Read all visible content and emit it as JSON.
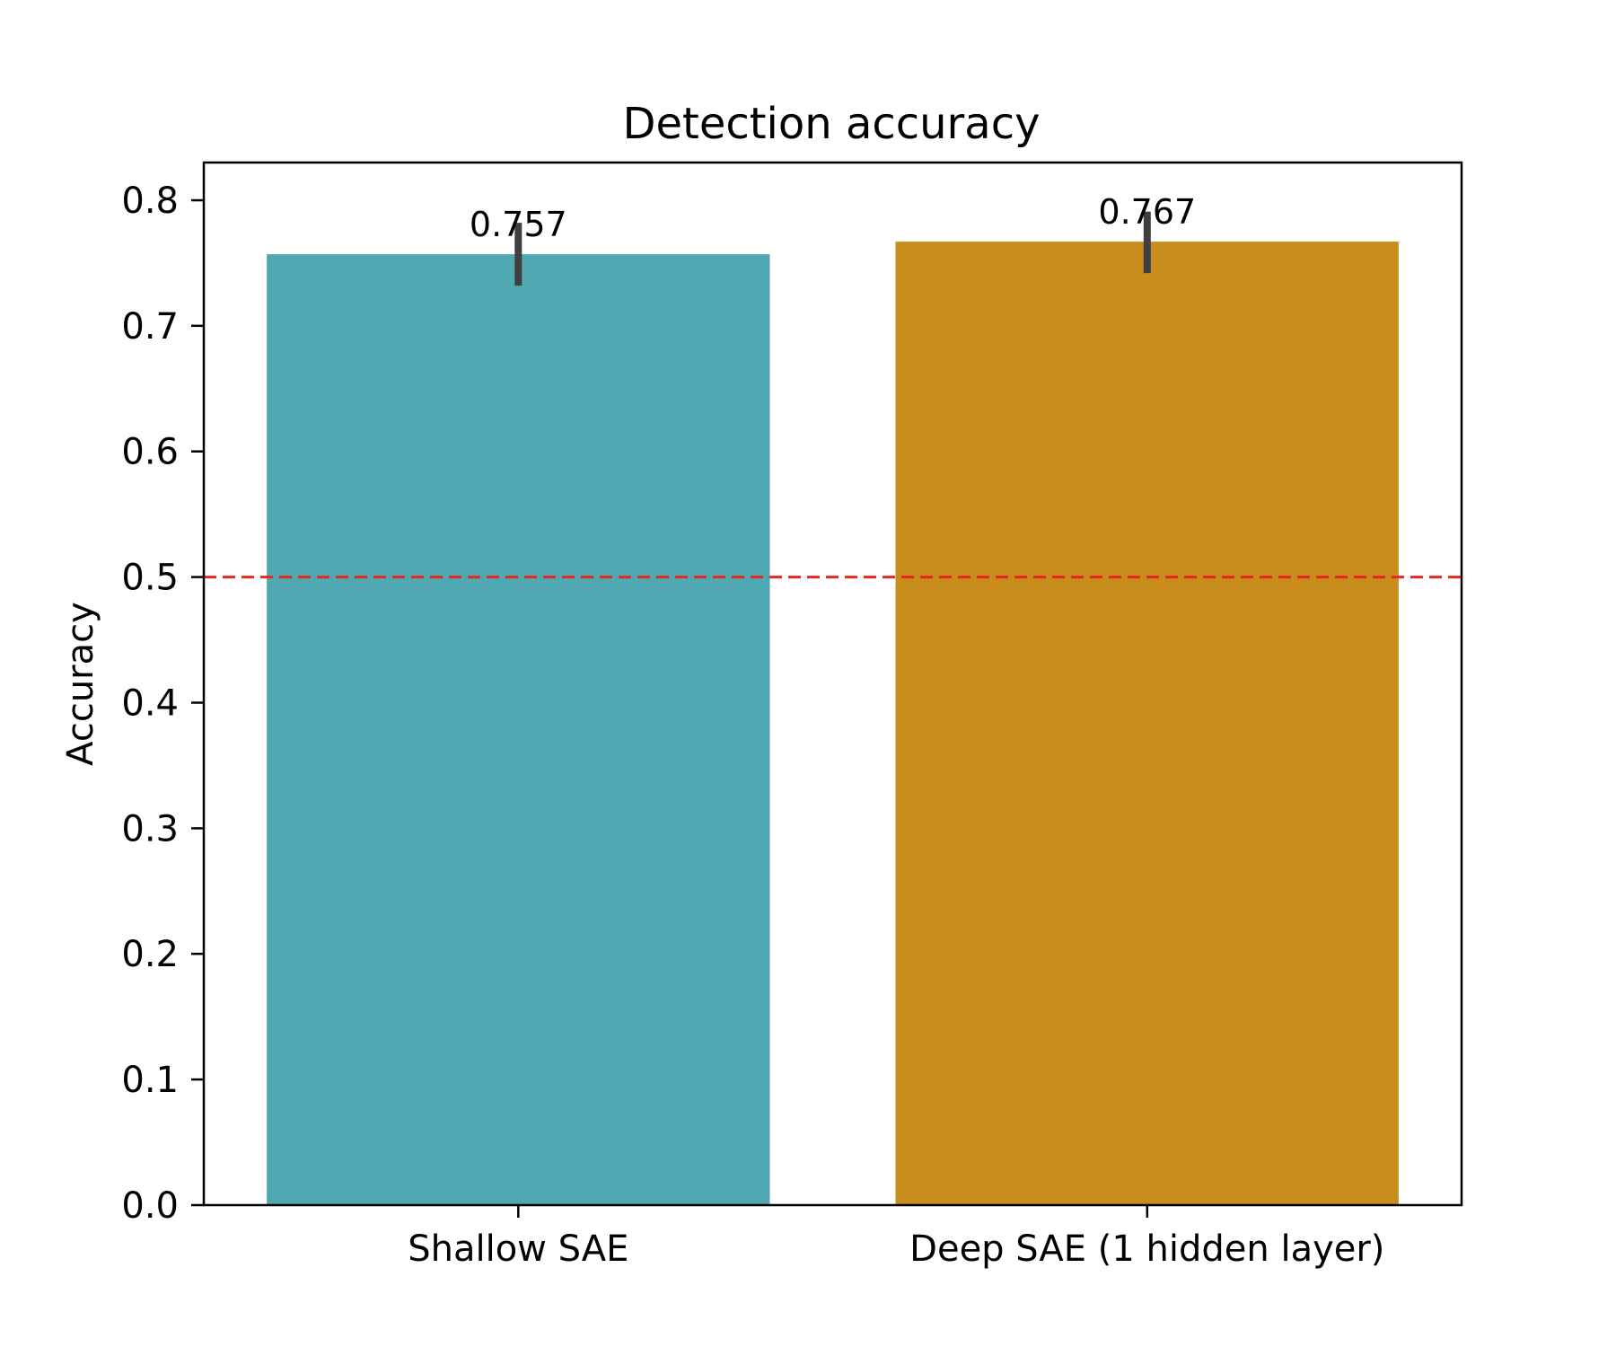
{
  "chart_data": {
    "type": "bar",
    "title": "Detection accuracy",
    "xlabel": "",
    "ylabel": "Accuracy",
    "categories": [
      "Shallow SAE",
      "Deep SAE (1 hidden layer)"
    ],
    "values": [
      0.757,
      0.767
    ],
    "value_labels": [
      "0.757",
      "0.767"
    ],
    "error_bars": [
      {
        "low": 0.732,
        "high": 0.782
      },
      {
        "low": 0.742,
        "high": 0.791
      }
    ],
    "bar_colors": [
      "#4FA8B2",
      "#C98D1D"
    ],
    "error_bar_color": "#3f3f3f",
    "ylim": [
      0,
      0.83
    ],
    "yticks": [
      0.0,
      0.1,
      0.2,
      0.3,
      0.4,
      0.5,
      0.6,
      0.7,
      0.8
    ],
    "ytick_labels": [
      "0.0",
      "0.1",
      "0.2",
      "0.3",
      "0.4",
      "0.5",
      "0.6",
      "0.7",
      "0.8"
    ],
    "reference_line": {
      "y": 0.5,
      "color": "#e8251f",
      "style": "dashed"
    },
    "grid": false,
    "legend": "none"
  }
}
